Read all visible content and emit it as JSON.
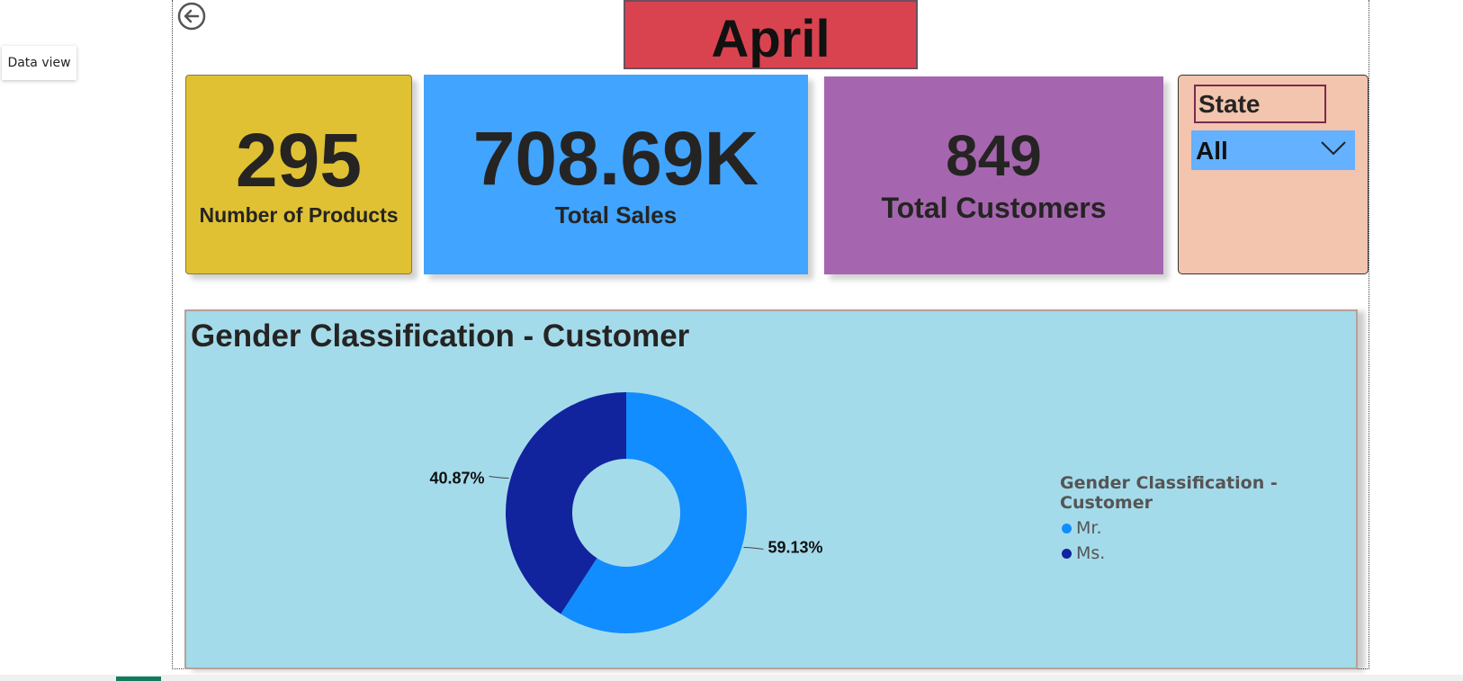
{
  "tooltip": {
    "text": "Data view"
  },
  "header": {
    "month": "April",
    "back_icon": "back-arrow-icon"
  },
  "cards": [
    {
      "value": "295",
      "label": "Number of Products",
      "color": "#e0c133"
    },
    {
      "value": "708.69K",
      "label": "Total Sales",
      "color": "#41a4ff"
    },
    {
      "value": "849",
      "label": "Total Customers",
      "color": "#a566af"
    }
  ],
  "slicer": {
    "title": "State",
    "selected": "All",
    "dropdown_icon": "chevron-down-icon",
    "background": "#f3c4ae"
  },
  "chart_panel": {
    "background": "#a4dbeb"
  },
  "chart_data": {
    "type": "pie",
    "variant": "donut",
    "title": "Gender Classification - Customer",
    "legend_title": "Gender Classification - Customer",
    "legend_position": "right",
    "slices": [
      {
        "label": "Mr.",
        "value": 59.13,
        "display": "59.13%",
        "color": "#118dff"
      },
      {
        "label": "Ms.",
        "value": 40.87,
        "display": "40.87%",
        "color": "#12239e"
      }
    ]
  }
}
